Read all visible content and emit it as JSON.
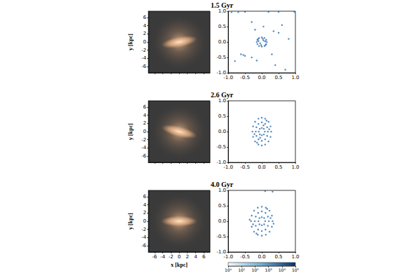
{
  "chart_data": [
    {
      "type": "image",
      "title": "1.5 Gyr",
      "ylabel": "y [kpc]",
      "xlim": [
        -7.5,
        7.5
      ],
      "ylim": [
        -7.5,
        7.5
      ],
      "xticks": [
        -6,
        -4,
        -2,
        0,
        2,
        4,
        6
      ],
      "yticks": [
        -6,
        -4,
        -2,
        0,
        2,
        4,
        6
      ],
      "tick_labels": "y"
    },
    {
      "type": "scatter",
      "color": "#2c6fb0",
      "xlim": [
        -1,
        1
      ],
      "ylim": [
        -1,
        1
      ],
      "xticks": [
        {
          "value": -1,
          "label": "-1.0"
        },
        {
          "value": -0.5,
          "label": "-0.5"
        },
        {
          "value": 0,
          "label": "0.0"
        },
        {
          "value": 0.5,
          "label": "0.5"
        },
        {
          "value": 1,
          "label": "1.0"
        }
      ],
      "yticks": [
        {
          "value": -1,
          "label": "-1.0"
        },
        {
          "value": -0.5,
          "label": "-0.5"
        },
        {
          "value": 0,
          "label": "0.0"
        },
        {
          "value": 0.5,
          "label": "0.5"
        },
        {
          "value": 1,
          "label": "1.0"
        }
      ],
      "x": [
        0.15,
        0.13,
        0.08,
        0,
        -0.08,
        -0.13,
        -0.15,
        -0.13,
        -0.08,
        0,
        0.08,
        0.13,
        0.1,
        -0.1,
        0.03,
        -0.02,
        0.05,
        -0.05,
        0.11,
        -0.11,
        -0.9,
        -0.7,
        -0.5,
        0.2,
        0.5,
        0.97,
        -0.55,
        -0.62,
        -0.5,
        -0.3,
        -0.15,
        -0.8,
        0.35,
        0.5,
        0.3,
        0.4,
        0.6,
        0.05,
        -0.2,
        0.7,
        0.8,
        -0.3
      ],
      "values": [
        0,
        0.07,
        0.13,
        0.15,
        0.13,
        0.07,
        0,
        -0.07,
        -0.13,
        -0.15,
        -0.13,
        -0.07,
        0.02,
        0.03,
        0.1,
        -0.1,
        0.05,
        -0.04,
        -0.1,
        0.1,
        0.97,
        0.97,
        0.98,
        0.98,
        0.98,
        0.98,
        -0.42,
        -0.4,
        -0.45,
        -0.5,
        -0.6,
        -0.62,
        0.35,
        0.3,
        -0.4,
        -0.75,
        0.55,
        0.5,
        0.4,
        -0.9,
        0.1,
        0.65
      ]
    },
    {
      "type": "image",
      "title": "2.6 Gyr",
      "ylabel": "y [kpc]",
      "xlim": [
        -7.5,
        7.5
      ],
      "ylim": [
        -7.5,
        7.5
      ],
      "xticks": [
        -6,
        -4,
        -2,
        0,
        2,
        4,
        6
      ],
      "yticks": [
        -6,
        -4,
        -2,
        0,
        2,
        4,
        6
      ],
      "tick_labels": "y"
    },
    {
      "type": "scatter",
      "color": "#2c6fb0",
      "xlim": [
        -1,
        1
      ],
      "ylim": [
        -1,
        1
      ],
      "xticks": [
        {
          "value": -1,
          "label": "-1.0"
        },
        {
          "value": -0.5,
          "label": "-0.5"
        },
        {
          "value": 0,
          "label": "0.0"
        },
        {
          "value": 0.5,
          "label": "0.5"
        },
        {
          "value": 1,
          "label": "1.0"
        }
      ],
      "yticks": [
        {
          "value": -1,
          "label": "-1.0"
        },
        {
          "value": -0.5,
          "label": "-0.5"
        },
        {
          "value": 0,
          "label": "0.0"
        },
        {
          "value": 0.5,
          "label": "0.5"
        },
        {
          "value": 1,
          "label": "1.0"
        }
      ],
      "x": [
        0.28,
        0.26,
        0.2,
        0.1,
        0,
        -0.1,
        -0.2,
        -0.26,
        -0.28,
        -0.26,
        -0.2,
        -0.1,
        0,
        0.1,
        0.2,
        0.26,
        0.18,
        0.16,
        0.1,
        0,
        -0.1,
        -0.16,
        -0.18,
        -0.16,
        -0.1,
        0,
        0.1,
        0.16,
        0.09,
        0.06,
        0,
        -0.06,
        -0.09,
        -0.06,
        0,
        0.06,
        0.22,
        -0.22,
        0.14,
        -0.14,
        0.05,
        -0.05
      ],
      "values": [
        0,
        0.17,
        0.32,
        0.42,
        0.45,
        0.42,
        0.32,
        0.17,
        0,
        -0.17,
        -0.32,
        -0.42,
        -0.45,
        -0.42,
        -0.32,
        -0.17,
        0,
        0.14,
        0.25,
        0.3,
        0.25,
        0.14,
        0,
        -0.14,
        -0.25,
        -0.3,
        -0.25,
        -0.14,
        0,
        0.09,
        0.12,
        0.09,
        0,
        -0.09,
        -0.12,
        -0.09,
        0.08,
        -0.08,
        0.36,
        -0.36,
        0.2,
        -0.2
      ]
    },
    {
      "type": "image",
      "title": "4.0 Gyr",
      "ylabel": "y [kpc]",
      "xlabel": "x [kpc]",
      "xlim": [
        -7.5,
        7.5
      ],
      "ylim": [
        -7.5,
        7.5
      ],
      "xticks": [
        -6,
        -4,
        -2,
        0,
        2,
        4,
        6
      ],
      "yticks": [
        -6,
        -4,
        -2,
        0,
        2,
        4,
        6
      ]
    },
    {
      "type": "scatter",
      "color": "#2c6fb0",
      "xlim": [
        -1,
        1
      ],
      "ylim": [
        -1,
        1
      ],
      "xticks": [
        {
          "value": -1,
          "label": "-1.0"
        },
        {
          "value": -0.5,
          "label": "-0.5"
        },
        {
          "value": 0,
          "label": "0.0"
        },
        {
          "value": 0.5,
          "label": "0.5"
        },
        {
          "value": 1,
          "label": "1.0"
        }
      ],
      "yticks": [
        {
          "value": -1,
          "label": "-1.0"
        },
        {
          "value": -0.5,
          "label": "-0.5"
        },
        {
          "value": 0,
          "label": "0.0"
        },
        {
          "value": 0.5,
          "label": "0.5"
        },
        {
          "value": 1,
          "label": "1.0"
        }
      ],
      "x": [
        0.32,
        0.3,
        0.23,
        0.12,
        0,
        -0.12,
        -0.23,
        -0.3,
        -0.32,
        -0.3,
        -0.23,
        -0.12,
        0,
        0.12,
        0.23,
        0.3,
        0.21,
        0.18,
        0.11,
        0,
        -0.11,
        -0.18,
        -0.21,
        -0.18,
        -0.11,
        0,
        0.11,
        0.18,
        0.1,
        0.07,
        0,
        -0.07,
        -0.1,
        -0.07,
        0,
        0.07,
        0.26,
        -0.26,
        0.16,
        -0.16,
        -0.36,
        0.35,
        0.1,
        0.32
      ],
      "values": [
        0,
        0.18,
        0.34,
        0.44,
        0.47,
        0.44,
        0.34,
        0.18,
        0,
        -0.18,
        -0.34,
        -0.44,
        -0.47,
        -0.44,
        -0.34,
        -0.18,
        0,
        0.15,
        0.27,
        0.32,
        0.27,
        0.15,
        0,
        -0.15,
        -0.27,
        -0.32,
        -0.27,
        -0.15,
        0,
        0.1,
        0.13,
        0.1,
        0,
        -0.1,
        -0.13,
        -0.1,
        0.1,
        -0.1,
        0.4,
        -0.4,
        0.05,
        -0.08,
        0.98,
        0.96
      ],
      "colorbar_range": [
        1,
        100000
      ],
      "colorbar_ticks": [
        {
          "value": 1,
          "label": "10⁰"
        },
        {
          "value": 10,
          "label": "10¹"
        },
        {
          "value": 100,
          "label": "10²"
        },
        {
          "value": 1000,
          "label": "10³"
        },
        {
          "value": 10000,
          "label": "10⁴"
        },
        {
          "value": 100000,
          "label": "10⁵"
        }
      ]
    }
  ]
}
